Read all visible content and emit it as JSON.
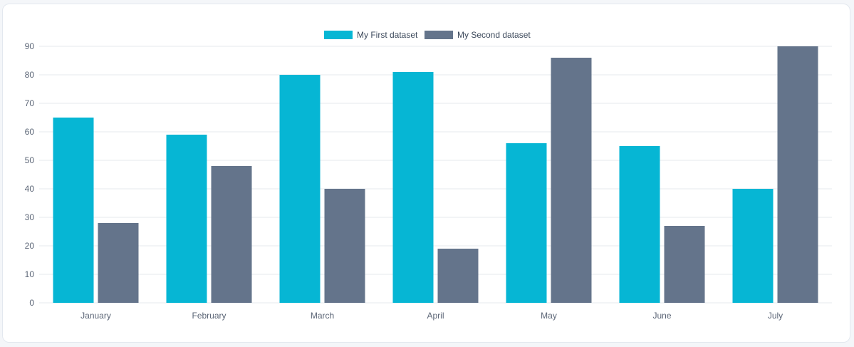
{
  "chart_data": {
    "type": "bar",
    "title": "",
    "xlabel": "",
    "ylabel": "",
    "categories": [
      "January",
      "February",
      "March",
      "April",
      "May",
      "June",
      "July"
    ],
    "series": [
      {
        "name": "My First dataset",
        "color": "#06b6d4",
        "values": [
          65,
          59,
          80,
          81,
          56,
          55,
          40
        ]
      },
      {
        "name": "My Second dataset",
        "color": "#64748b",
        "values": [
          28,
          48,
          40,
          19,
          86,
          27,
          90
        ]
      }
    ],
    "ylim": [
      0,
      90
    ],
    "yticks": [
      0,
      10,
      20,
      30,
      40,
      50,
      60,
      70,
      80,
      90
    ],
    "grid": true,
    "legend_position": "top-center"
  }
}
